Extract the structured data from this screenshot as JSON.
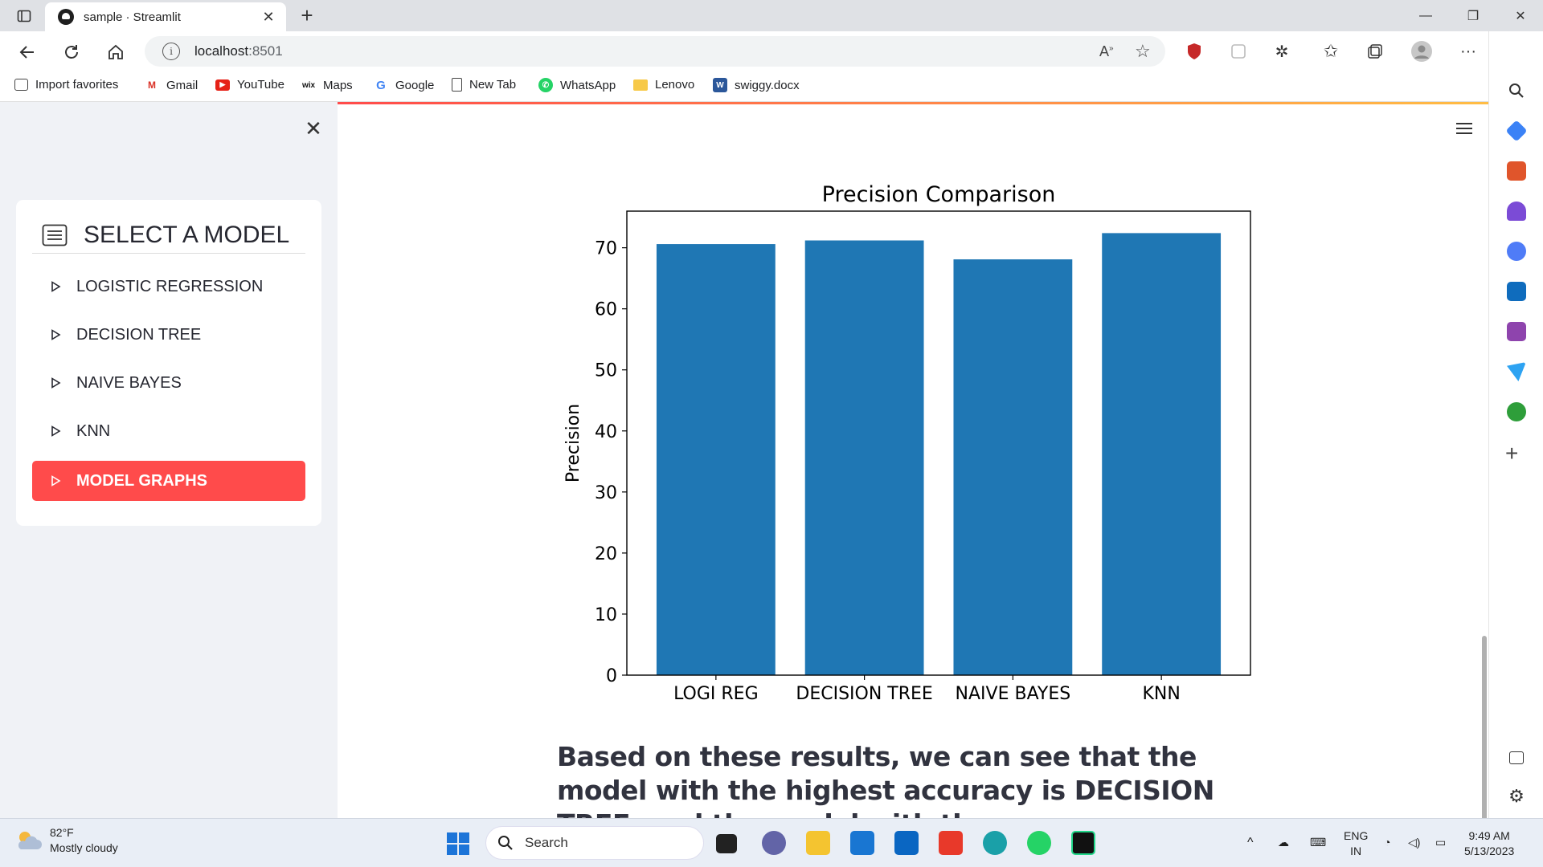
{
  "browser": {
    "tab_title": "sample · Streamlit",
    "url_host": "localhost",
    "url_port": ":8501",
    "bookmarks": [
      {
        "label": "Import favorites",
        "icon": "import-icon"
      },
      {
        "label": "Gmail",
        "icon": "gmail-icon"
      },
      {
        "label": "YouTube",
        "icon": "youtube-icon"
      },
      {
        "label": "Maps",
        "icon": "wix-icon"
      },
      {
        "label": "Google",
        "icon": "google-icon"
      },
      {
        "label": "New Tab",
        "icon": "page-icon"
      },
      {
        "label": "WhatsApp",
        "icon": "whatsapp-icon"
      },
      {
        "label": "Lenovo",
        "icon": "folder-icon"
      },
      {
        "label": "swiggy.docx",
        "icon": "word-icon"
      }
    ]
  },
  "sidebar": {
    "title": "SELECT A MODEL",
    "items": [
      {
        "label": "LOGISTIC REGRESSION"
      },
      {
        "label": "DECISION TREE"
      },
      {
        "label": "NAIVE BAYES"
      },
      {
        "label": "KNN"
      },
      {
        "label": "MODEL GRAPHS"
      }
    ],
    "active_index": 4,
    "accent_color": "#ff4b4b"
  },
  "chart_data": {
    "type": "bar",
    "title": "Precision Comparison",
    "xlabel": "",
    "ylabel": "Precision",
    "categories": [
      "LOGI REG",
      "DECISION TREE",
      "NAIVE BAYES",
      "KNN"
    ],
    "values": [
      70.6,
      71.2,
      68.1,
      72.4
    ],
    "ylim": [
      0,
      76
    ],
    "yticks": [
      0,
      10,
      20,
      30,
      40,
      50,
      60,
      70
    ],
    "bar_color": "#1f77b4",
    "grid": false
  },
  "main": {
    "paragraph": "Based on these results, we can see that the model with the highest accuracy is DECISION TREE, and the model with the"
  },
  "taskbar": {
    "weather_temp": "82°F",
    "weather_desc": "Mostly cloudy",
    "search_placeholder": "Search",
    "lang_top": "ENG",
    "lang_bottom": "IN",
    "time": "9:49 AM",
    "date": "5/13/2023"
  }
}
